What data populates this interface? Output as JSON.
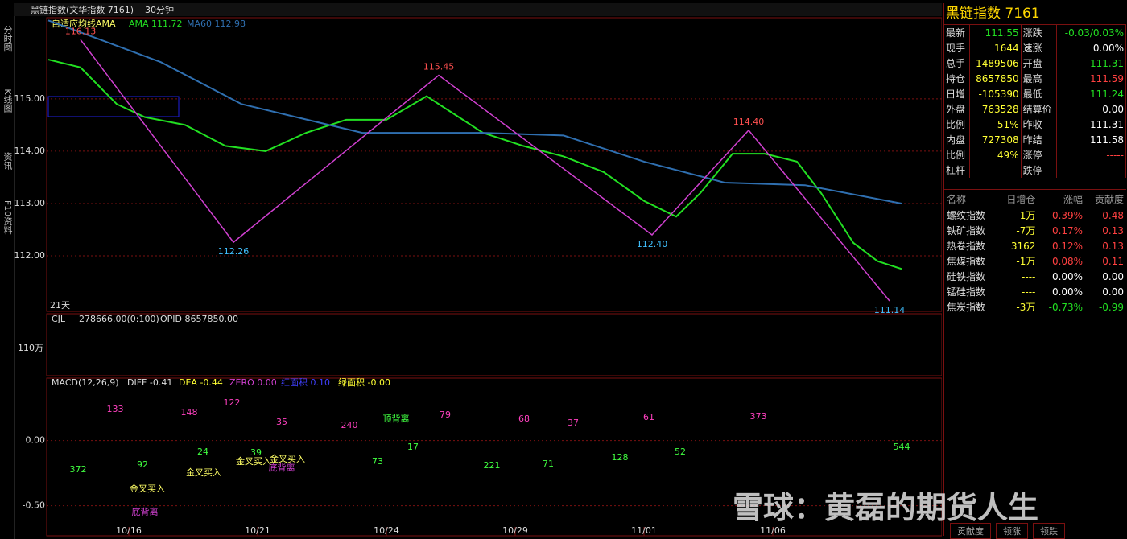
{
  "header": {
    "title": "黑链指数(文华指数 7161)",
    "period": "30分钟"
  },
  "toolbar": [
    "分时图",
    "K线图",
    "资讯",
    "F10资料"
  ],
  "price_panel": {
    "indicator": "自适应均线AMA",
    "period_label": "21天",
    "xlim": [
      0,
      107
    ],
    "xticks": [
      {
        "value": 10,
        "label": "10/16"
      },
      {
        "value": 26,
        "label": "10/21"
      },
      {
        "value": 42,
        "label": "10/24"
      },
      {
        "value": 58,
        "label": "10/29"
      },
      {
        "value": 74,
        "label": "11/01"
      },
      {
        "value": 90,
        "label": "11/06"
      }
    ],
    "ylim": [
      110.94,
      116.55
    ],
    "yticks": [
      {
        "value": 112,
        "label": "112.00"
      },
      {
        "value": 113,
        "label": "113.00"
      },
      {
        "value": 114,
        "label": "114.00"
      },
      {
        "value": 115,
        "label": "115.00"
      }
    ],
    "series": [
      {
        "name": "AMA 111.72",
        "color": "#22e022",
        "x": [
          0,
          4,
          8.5,
          12,
          17,
          22,
          27,
          32,
          37,
          42,
          47,
          50,
          54,
          59,
          64,
          69,
          74,
          78,
          81,
          85,
          89,
          93,
          96,
          100,
          103,
          106
        ],
        "values": [
          115.75,
          115.6,
          114.9,
          114.65,
          114.5,
          114.1,
          114.0,
          114.35,
          114.6,
          114.6,
          115.05,
          114.75,
          114.35,
          114.1,
          113.9,
          113.6,
          113.05,
          112.75,
          113.2,
          113.95,
          113.95,
          113.8,
          113.2,
          112.25,
          111.9,
          111.75
        ]
      },
      {
        "name": "MA60 112.98",
        "color": "#2f6fb0",
        "x": [
          0,
          14,
          24,
          39,
          54,
          64,
          74,
          84,
          94,
          106
        ],
        "values": [
          116.5,
          115.7,
          114.9,
          114.35,
          114.35,
          114.3,
          113.8,
          113.4,
          113.35,
          113.0
        ]
      }
    ],
    "zigzag": {
      "color": "#d040d0",
      "x": [
        4,
        23,
        48.5,
        75,
        87,
        104.5
      ],
      "values": [
        116.13,
        112.26,
        115.45,
        112.4,
        114.4,
        111.14
      ],
      "value_labels": [
        "116.13",
        "112.26",
        "115.45",
        "112.40",
        "114.40",
        "111.14"
      ]
    }
  },
  "volume_panel": {
    "header": "CJL",
    "value": "278666.00(0:100)",
    "opid": "OPID 8657850.00",
    "tick_label": "110万"
  },
  "macd_panel": {
    "header": [
      "MACD(12,26,9)",
      "DIFF -0.41",
      "DEA -0.44",
      "ZERO 0.00",
      "红面积 0.10",
      "绿面积 -0.00"
    ],
    "ylim": [
      -0.725,
      0.48
    ],
    "yticks": [
      {
        "value": 0,
        "label": "0.00"
      },
      {
        "value": -0.5,
        "label": "-0.50"
      }
    ],
    "annotations": [
      "133",
      "148",
      "122",
      "35",
      "240",
      "79",
      "68",
      "37",
      "61",
      "373",
      "372",
      "92",
      "24",
      "39",
      "73",
      "17",
      "221",
      "71",
      "128",
      "52",
      "544",
      "顶背离",
      "底背离",
      "底背离",
      "金叉买入",
      "金叉买入",
      "金叉买入",
      "金叉买入"
    ]
  },
  "quote_panel": {
    "title": "黑链指数 7161",
    "rows": [
      [
        "最新",
        "111.55",
        "涨跌",
        "-0.03/0.03%"
      ],
      [
        "现手",
        "1644",
        "速涨",
        "0.00%"
      ],
      [
        "总手",
        "1489506",
        "开盘",
        "111.31"
      ],
      [
        "持仓",
        "8657850",
        "最高",
        "111.59"
      ],
      [
        "日增",
        "-105390",
        "最低",
        "111.24"
      ],
      [
        "外盘",
        "763528",
        "结算价",
        "0.00"
      ],
      [
        "比例",
        "51%",
        "昨收",
        "111.31"
      ],
      [
        "内盘",
        "727308",
        "昨结",
        "111.58"
      ],
      [
        "比例",
        "49%",
        "涨停",
        "-----"
      ],
      [
        "杠杆",
        "-----",
        "跌停",
        "-----"
      ]
    ]
  },
  "sector_table": {
    "header": [
      "名称",
      "日增仓",
      "涨幅",
      "贡献度"
    ],
    "rows": [
      [
        "螺纹指数",
        "1万",
        "0.39%",
        "0.48"
      ],
      [
        "铁矿指数",
        "-7万",
        "0.17%",
        "0.13"
      ],
      [
        "热卷指数",
        "3162",
        "0.12%",
        "0.13"
      ],
      [
        "焦煤指数",
        "-1万",
        "0.08%",
        "0.11"
      ],
      [
        "硅铁指数",
        "----",
        "0.00%",
        "0.00"
      ],
      [
        "锰硅指数",
        "----",
        "0.00%",
        "0.00"
      ],
      [
        "焦炭指数",
        "-3万",
        "-0.73%",
        "-0.99"
      ]
    ]
  },
  "tabs": [
    "贡献度",
    "领涨",
    "领跌"
  ],
  "watermark": "雪球：黄磊的期货人生"
}
